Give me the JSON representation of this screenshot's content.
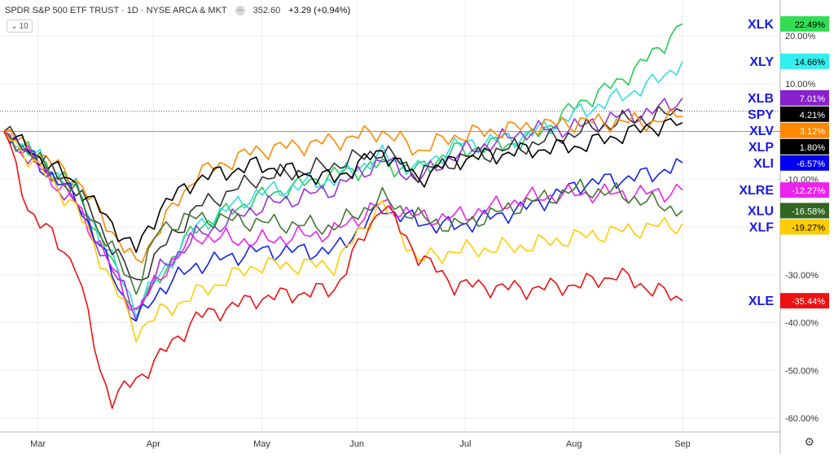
{
  "header": {
    "symbol": "SPDR S&P 500 ETF TRUST · 1D · NYSE ARCA & MKT",
    "icon": "minus-icon",
    "price": "352.60",
    "change": "+3.29 (+0.94%)"
  },
  "interval_box": {
    "icon": "chevron-down-icon",
    "value": "10"
  },
  "settings_icon": "gear-icon",
  "chart_data": {
    "type": "line",
    "x_axis": {
      "ticks": [
        "Mar",
        "Apr",
        "May",
        "Jun",
        "Jul",
        "Aug",
        "Sep"
      ]
    },
    "y_axis": {
      "ticks": [
        "20.00%",
        "10.00%",
        "0.00%",
        "-10.00%",
        "-20.00%",
        "-30.00%",
        "-40.00%",
        "-50.00%",
        "-60.00%"
      ],
      "range": [
        -62,
        26
      ],
      "unit": "%"
    },
    "baseline": 0,
    "grid": true,
    "series": [
      {
        "name": "XLK",
        "color": "#22cc55",
        "label_bg": "#33dd55",
        "label_fg": "#000000",
        "last": "22.49%",
        "keys": [
          [
            0,
            0
          ],
          [
            12,
            -12
          ],
          [
            22,
            -38
          ],
          [
            26,
            -30
          ],
          [
            32,
            -20
          ],
          [
            42,
            -14
          ],
          [
            55,
            -9
          ],
          [
            63,
            -7
          ],
          [
            69,
            -8
          ],
          [
            75,
            -4
          ],
          [
            87,
            -2
          ],
          [
            96,
            6
          ],
          [
            102,
            10
          ],
          [
            108,
            16
          ],
          [
            113,
            22.49
          ]
        ]
      },
      {
        "name": "XLY",
        "color": "#33dddd",
        "label_bg": "#33eeee",
        "label_fg": "#000000",
        "last": "14.66%",
        "keys": [
          [
            0,
            0
          ],
          [
            12,
            -12
          ],
          [
            22,
            -37
          ],
          [
            26,
            -30
          ],
          [
            32,
            -20
          ],
          [
            42,
            -13
          ],
          [
            55,
            -10
          ],
          [
            63,
            -5
          ],
          [
            69,
            -8
          ],
          [
            75,
            -3
          ],
          [
            87,
            -1
          ],
          [
            96,
            4
          ],
          [
            102,
            7
          ],
          [
            108,
            10
          ],
          [
            113,
            14.66
          ]
        ]
      },
      {
        "name": "XLB",
        "color": "#9933dd",
        "label_bg": "#8822cc",
        "label_fg": "#ffffff",
        "last": "7.01%",
        "keys": [
          [
            0,
            0
          ],
          [
            12,
            -15
          ],
          [
            22,
            -38
          ],
          [
            26,
            -29
          ],
          [
            32,
            -22
          ],
          [
            42,
            -16
          ],
          [
            55,
            -12
          ],
          [
            63,
            -6
          ],
          [
            69,
            -10
          ],
          [
            75,
            -5
          ],
          [
            87,
            0
          ],
          [
            96,
            1
          ],
          [
            102,
            3
          ],
          [
            108,
            4
          ],
          [
            113,
            7.01
          ]
        ]
      },
      {
        "name": "SPY",
        "color": "#333333",
        "label_bg": "#000000",
        "label_fg": "#ffffff",
        "last": "4.21%",
        "keys": [
          [
            0,
            0
          ],
          [
            12,
            -12
          ],
          [
            22,
            -32
          ],
          [
            26,
            -25
          ],
          [
            32,
            -16
          ],
          [
            42,
            -10
          ],
          [
            55,
            -7
          ],
          [
            63,
            -4
          ],
          [
            69,
            -9
          ],
          [
            75,
            -6
          ],
          [
            87,
            -3
          ],
          [
            96,
            0
          ],
          [
            102,
            2
          ],
          [
            108,
            3
          ],
          [
            113,
            4.21
          ]
        ]
      },
      {
        "name": "XLV",
        "color": "#ff8800",
        "label_bg": "#ff8800",
        "label_fg": "#ffffff",
        "last": "3.12%",
        "keys": [
          [
            0,
            0
          ],
          [
            12,
            -10
          ],
          [
            22,
            -28
          ],
          [
            26,
            -20
          ],
          [
            32,
            -9
          ],
          [
            42,
            -4
          ],
          [
            55,
            -2
          ],
          [
            63,
            0
          ],
          [
            69,
            -4
          ],
          [
            75,
            -1
          ],
          [
            87,
            1
          ],
          [
            96,
            2
          ],
          [
            102,
            2
          ],
          [
            108,
            2
          ],
          [
            113,
            3.12
          ]
        ]
      },
      {
        "name": "XLP",
        "color": "#000000",
        "label_bg": "#000000",
        "label_fg": "#ffffff",
        "last": "1.80%",
        "keys": [
          [
            0,
            0
          ],
          [
            12,
            -11
          ],
          [
            22,
            -25
          ],
          [
            26,
            -16
          ],
          [
            32,
            -10
          ],
          [
            42,
            -7
          ],
          [
            55,
            -10
          ],
          [
            63,
            -4
          ],
          [
            69,
            -10
          ],
          [
            75,
            -6
          ],
          [
            87,
            -4
          ],
          [
            96,
            -3
          ],
          [
            102,
            -1
          ],
          [
            108,
            1
          ],
          [
            113,
            1.8
          ]
        ]
      },
      {
        "name": "XLI",
        "color": "#1122ee",
        "label_bg": "#0000ee",
        "label_fg": "#ffffff",
        "last": "-6.57%",
        "keys": [
          [
            0,
            0
          ],
          [
            12,
            -14
          ],
          [
            22,
            -40
          ],
          [
            26,
            -33
          ],
          [
            32,
            -28
          ],
          [
            42,
            -25
          ],
          [
            55,
            -25
          ],
          [
            63,
            -16
          ],
          [
            69,
            -19
          ],
          [
            75,
            -20
          ],
          [
            87,
            -16
          ],
          [
            96,
            -11
          ],
          [
            102,
            -10
          ],
          [
            108,
            -9
          ],
          [
            113,
            -6.57
          ]
        ]
      },
      {
        "name": "XLRE",
        "color": "#ee22ee",
        "label_bg": "#ee22ee",
        "label_fg": "#ffffff",
        "last": "-12.27%",
        "keys": [
          [
            0,
            0
          ],
          [
            12,
            -15
          ],
          [
            22,
            -38
          ],
          [
            26,
            -30
          ],
          [
            32,
            -22
          ],
          [
            42,
            -23
          ],
          [
            55,
            -21
          ],
          [
            63,
            -15
          ],
          [
            69,
            -18
          ],
          [
            75,
            -18
          ],
          [
            87,
            -14
          ],
          [
            96,
            -13
          ],
          [
            102,
            -13
          ],
          [
            108,
            -13
          ],
          [
            113,
            -12.27
          ]
        ]
      },
      {
        "name": "XLU",
        "color": "#447733",
        "label_bg": "#336622",
        "label_fg": "#ffffff",
        "last": "-16.58%",
        "keys": [
          [
            0,
            0
          ],
          [
            12,
            -13
          ],
          [
            22,
            -33
          ],
          [
            26,
            -20
          ],
          [
            32,
            -18
          ],
          [
            42,
            -19
          ],
          [
            55,
            -20
          ],
          [
            63,
            -14
          ],
          [
            69,
            -18
          ],
          [
            75,
            -20
          ],
          [
            87,
            -15
          ],
          [
            96,
            -12
          ],
          [
            102,
            -13
          ],
          [
            108,
            -15
          ],
          [
            113,
            -16.58
          ]
        ]
      },
      {
        "name": "XLF",
        "color": "#ffcc00",
        "label_bg": "#ffcc00",
        "label_fg": "#000000",
        "last": "-19.27%",
        "keys": [
          [
            0,
            0
          ],
          [
            12,
            -16
          ],
          [
            22,
            -42
          ],
          [
            26,
            -38
          ],
          [
            32,
            -34
          ],
          [
            42,
            -28
          ],
          [
            55,
            -28
          ],
          [
            63,
            -15
          ],
          [
            69,
            -27
          ],
          [
            75,
            -25
          ],
          [
            87,
            -24
          ],
          [
            96,
            -22
          ],
          [
            102,
            -21
          ],
          [
            108,
            -20
          ],
          [
            113,
            -19.27
          ]
        ]
      },
      {
        "name": "XLE",
        "color": "#ee1111",
        "label_bg": "#ee1111",
        "label_fg": "#ffffff",
        "last": "-35.44%",
        "keys": [
          [
            0,
            0
          ],
          [
            4,
            -16
          ],
          [
            12,
            -28
          ],
          [
            16,
            -50
          ],
          [
            18,
            -56
          ],
          [
            22,
            -52
          ],
          [
            26,
            -47
          ],
          [
            32,
            -39
          ],
          [
            42,
            -35
          ],
          [
            55,
            -33
          ],
          [
            63,
            -15
          ],
          [
            69,
            -26
          ],
          [
            75,
            -32
          ],
          [
            87,
            -33
          ],
          [
            96,
            -32
          ],
          [
            102,
            -30
          ],
          [
            108,
            -33
          ],
          [
            113,
            -35.44
          ]
        ]
      }
    ]
  }
}
